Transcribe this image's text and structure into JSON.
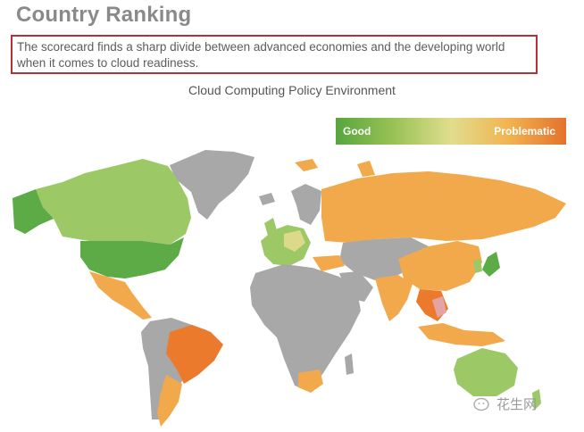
{
  "heading": "Country Ranking",
  "callout": "The scorecard finds a sharp divide between advanced economies and the developing world when it comes to cloud readiness.",
  "map": {
    "title": "Cloud Computing Policy Environment",
    "legend": {
      "low_label": "Good",
      "high_label": "Problematic",
      "colors": [
        "#58a53e",
        "#98c255",
        "#e1dd8e",
        "#f1b451",
        "#e4712d"
      ]
    },
    "colors": {
      "no_data": "#a8a8a8",
      "good": "#5cab47",
      "good_light": "#9cc866",
      "neutral": "#dcd98a",
      "problematic": "#f2a94c",
      "very_problematic": "#ec7a2c"
    }
  },
  "watermark": "花生网"
}
